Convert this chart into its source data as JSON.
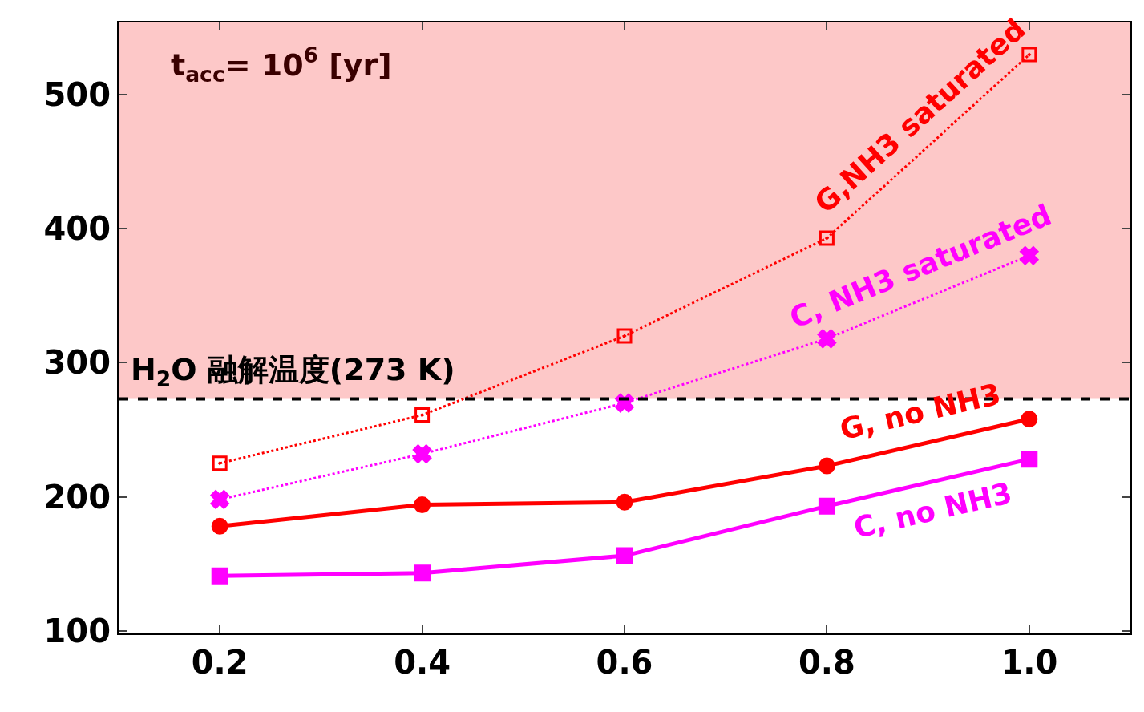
{
  "chart_data": {
    "type": "line",
    "xlim": [
      0.1,
      1.1
    ],
    "xticks": [
      0.2,
      0.4,
      0.6,
      0.8,
      {
        "value": 1.0,
        "label": "1.0"
      }
    ],
    "ylim": [
      98,
      554
    ],
    "yticks": [
      100,
      200,
      300,
      400,
      500
    ],
    "grid": false,
    "legend": false,
    "x": [
      0.2,
      0.4,
      0.6,
      0.8,
      1.0
    ],
    "series": [
      {
        "name": "G,NH3 saturated",
        "color": "#ff0000",
        "values": [
          225,
          261,
          320,
          393,
          530
        ],
        "marker": "square",
        "line_style": "dotted"
      },
      {
        "name": "C, NH3 saturated",
        "color": "#ff00ff",
        "values": [
          198,
          232,
          270,
          318,
          380
        ],
        "marker": "cross",
        "line_style": "dotted"
      },
      {
        "name": "G, no NH3",
        "color": "#ff0000",
        "values": [
          178,
          194,
          196,
          223,
          258
        ],
        "marker": "circle",
        "line_style": "solid"
      },
      {
        "name": "C, no NH3",
        "color": "#ff00ff",
        "values": [
          141,
          143,
          156,
          193,
          228
        ],
        "marker": "square",
        "line_style": "solid"
      }
    ],
    "ref_lines": [
      {
        "axis": "y",
        "value": 273,
        "label": "H$_{2}$O 融解温度(273 K)",
        "color": "#000000",
        "line_style": "dashed"
      }
    ],
    "bands": [
      {
        "axis": "y",
        "from": 273,
        "to": 554,
        "color": "#fdc8c8"
      }
    ],
    "annotations": [
      "t$_{acc}$= 10$^{6}$ [yr]"
    ]
  }
}
